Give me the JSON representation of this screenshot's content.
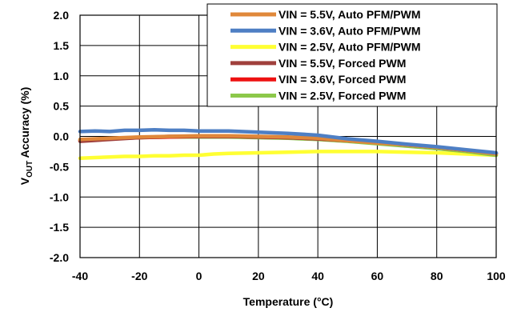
{
  "chart_data": {
    "type": "line",
    "title": "",
    "xlabel": "Temperature (°C)",
    "ylabel": {
      "prefix": "V",
      "subscript": "OUT",
      "suffix": " Accuracy (%)"
    },
    "xlim": [
      -40,
      100
    ],
    "ylim": [
      -2.0,
      2.0
    ],
    "x_ticks": [
      "-40",
      "-20",
      "0",
      "20",
      "40",
      "60",
      "80",
      "100"
    ],
    "y_ticks": [
      "2.0",
      "1.5",
      "1.0",
      "0.5",
      "0.0",
      "-0.5",
      "-1.0",
      "-1.5",
      "-2.0"
    ],
    "grid": true,
    "legend_position": "top-right",
    "series": [
      {
        "name": "VIN = 5.5V, Auto PFM/PWM",
        "color": "#E0883A",
        "x": [
          -40,
          -30,
          -20,
          -10,
          0,
          10,
          20,
          30,
          40,
          50,
          60,
          70,
          80,
          90,
          100
        ],
        "y": [
          -0.05,
          -0.03,
          -0.01,
          0.0,
          0.01,
          0.01,
          0.0,
          -0.01,
          -0.03,
          -0.07,
          -0.11,
          -0.14,
          -0.18,
          -0.23,
          -0.29
        ]
      },
      {
        "name": "VIN = 3.6V, Auto PFM/PWM",
        "color": "#4E7FC4",
        "x": [
          -40,
          -35,
          -30,
          -25,
          -20,
          -15,
          -10,
          -5,
          0,
          10,
          20,
          30,
          40,
          50,
          60,
          70,
          80,
          90,
          100
        ],
        "y": [
          0.08,
          0.09,
          0.08,
          0.1,
          0.1,
          0.11,
          0.1,
          0.1,
          0.09,
          0.09,
          0.07,
          0.05,
          0.02,
          -0.04,
          -0.08,
          -0.13,
          -0.17,
          -0.22,
          -0.27
        ]
      },
      {
        "name": "VIN = 2.5V, Auto PFM/PWM",
        "color": "#FFFF33",
        "x": [
          -40,
          -35,
          -30,
          -25,
          -20,
          -15,
          -10,
          -5,
          0,
          5,
          10,
          20,
          30,
          40,
          50,
          60,
          70,
          80,
          90,
          100
        ],
        "y": [
          -0.36,
          -0.35,
          -0.34,
          -0.33,
          -0.33,
          -0.32,
          -0.32,
          -0.31,
          -0.31,
          -0.29,
          -0.28,
          -0.27,
          -0.26,
          -0.25,
          -0.25,
          -0.25,
          -0.26,
          -0.27,
          -0.29,
          -0.31
        ]
      },
      {
        "name": "VIN = 5.5V, Forced PWM",
        "color": "#A0403C",
        "x": [
          -40,
          -30,
          -20,
          -10,
          0,
          10,
          20,
          30,
          40,
          50,
          60,
          70,
          80,
          90,
          100
        ],
        "y": [
          -0.08,
          -0.05,
          -0.02,
          0.0,
          0.0,
          0.0,
          -0.01,
          -0.02,
          -0.04,
          -0.07,
          -0.1,
          -0.14,
          -0.18,
          -0.23,
          -0.28
        ]
      },
      {
        "name": "VIN = 3.6V, Forced PWM",
        "color": "#EE1111",
        "x": [
          -40,
          -30,
          -20,
          -10,
          0,
          10,
          20,
          30,
          40,
          50,
          60,
          70,
          80,
          90,
          100
        ],
        "y": [
          -0.07,
          -0.04,
          -0.02,
          -0.01,
          0.0,
          0.0,
          -0.01,
          -0.02,
          -0.04,
          -0.07,
          -0.1,
          -0.14,
          -0.18,
          -0.23,
          -0.28
        ]
      },
      {
        "name": "VIN = 2.5V, Forced PWM",
        "color": "#8CC84A",
        "x": [
          -40,
          -30,
          -20,
          -10,
          0,
          10,
          20,
          30,
          40,
          50,
          60,
          70,
          80,
          90,
          100
        ],
        "y": [
          -0.06,
          -0.04,
          -0.02,
          -0.01,
          -0.01,
          -0.01,
          -0.02,
          -0.03,
          -0.05,
          -0.08,
          -0.12,
          -0.16,
          -0.2,
          -0.25,
          -0.31
        ]
      }
    ]
  }
}
